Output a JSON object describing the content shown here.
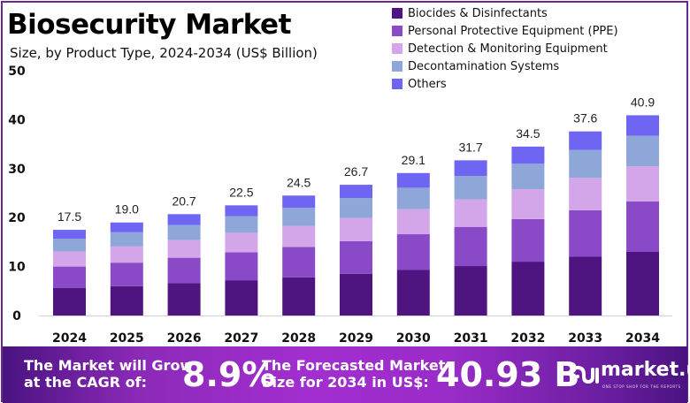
{
  "header": {
    "title": "Biosecurity Market",
    "subtitle": "Size, by Product Type, 2024-2034 (US$ Billion)"
  },
  "chart_data": {
    "type": "bar",
    "stacked": true,
    "title": "Biosecurity Market",
    "subtitle": "Size, by Product Type, 2024-2034 (US$ Billion)",
    "xlabel": "",
    "ylabel": "",
    "ylim": [
      0,
      50
    ],
    "yticks": [
      0,
      10,
      20,
      30,
      40,
      50
    ],
    "grid": false,
    "legend_position": "top-right",
    "categories": [
      "2024",
      "2025",
      "2026",
      "2027",
      "2028",
      "2029",
      "2030",
      "2031",
      "2032",
      "2033",
      "2034"
    ],
    "totals": [
      17.5,
      19.0,
      20.7,
      22.5,
      24.5,
      26.7,
      29.1,
      31.7,
      34.5,
      37.6,
      40.9
    ],
    "total_labels": [
      "17.5",
      "19.0",
      "20.7",
      "22.5",
      "24.5",
      "26.7",
      "29.1",
      "31.7",
      "34.5",
      "37.6",
      "40.9"
    ],
    "series": [
      {
        "name": "Biocides & Disinfectants",
        "color": "#4e1580",
        "values": [
          5.6,
          6.0,
          6.6,
          7.2,
          7.8,
          8.5,
          9.3,
          10.1,
          11.0,
          12.0,
          13.0
        ]
      },
      {
        "name": "Personal Protective Equipment (PPE)",
        "color": "#8a4ac8",
        "values": [
          4.4,
          4.8,
          5.2,
          5.7,
          6.2,
          6.7,
          7.3,
          8.0,
          8.7,
          9.5,
          10.3
        ]
      },
      {
        "name": "Detection & Monitoring Equipment",
        "color": "#d2a6e8",
        "values": [
          3.1,
          3.3,
          3.6,
          4.0,
          4.3,
          4.7,
          5.1,
          5.6,
          6.1,
          6.6,
          7.2
        ]
      },
      {
        "name": "Decontamination Systems",
        "color": "#8fa6d8",
        "values": [
          2.6,
          2.9,
          3.1,
          3.4,
          3.7,
          4.1,
          4.4,
          4.8,
          5.2,
          5.7,
          6.2
        ]
      },
      {
        "name": "Others",
        "color": "#6e66f2",
        "values": [
          1.8,
          2.0,
          2.2,
          2.2,
          2.5,
          2.7,
          3.0,
          3.2,
          3.5,
          3.8,
          4.2
        ]
      }
    ]
  },
  "banner": {
    "cagr_label_line1": "The Market will Grow",
    "cagr_label_line2": "at the CAGR of:",
    "cagr_value": "8.9%",
    "forecast_label_line1": "The Forecasted Market",
    "forecast_label_line2": "Size for 2034 in US$:",
    "forecast_value": "40.93 B",
    "brand_name": "market.us",
    "brand_tagline": "ONE STOP SHOP FOR THE REPORTS"
  }
}
